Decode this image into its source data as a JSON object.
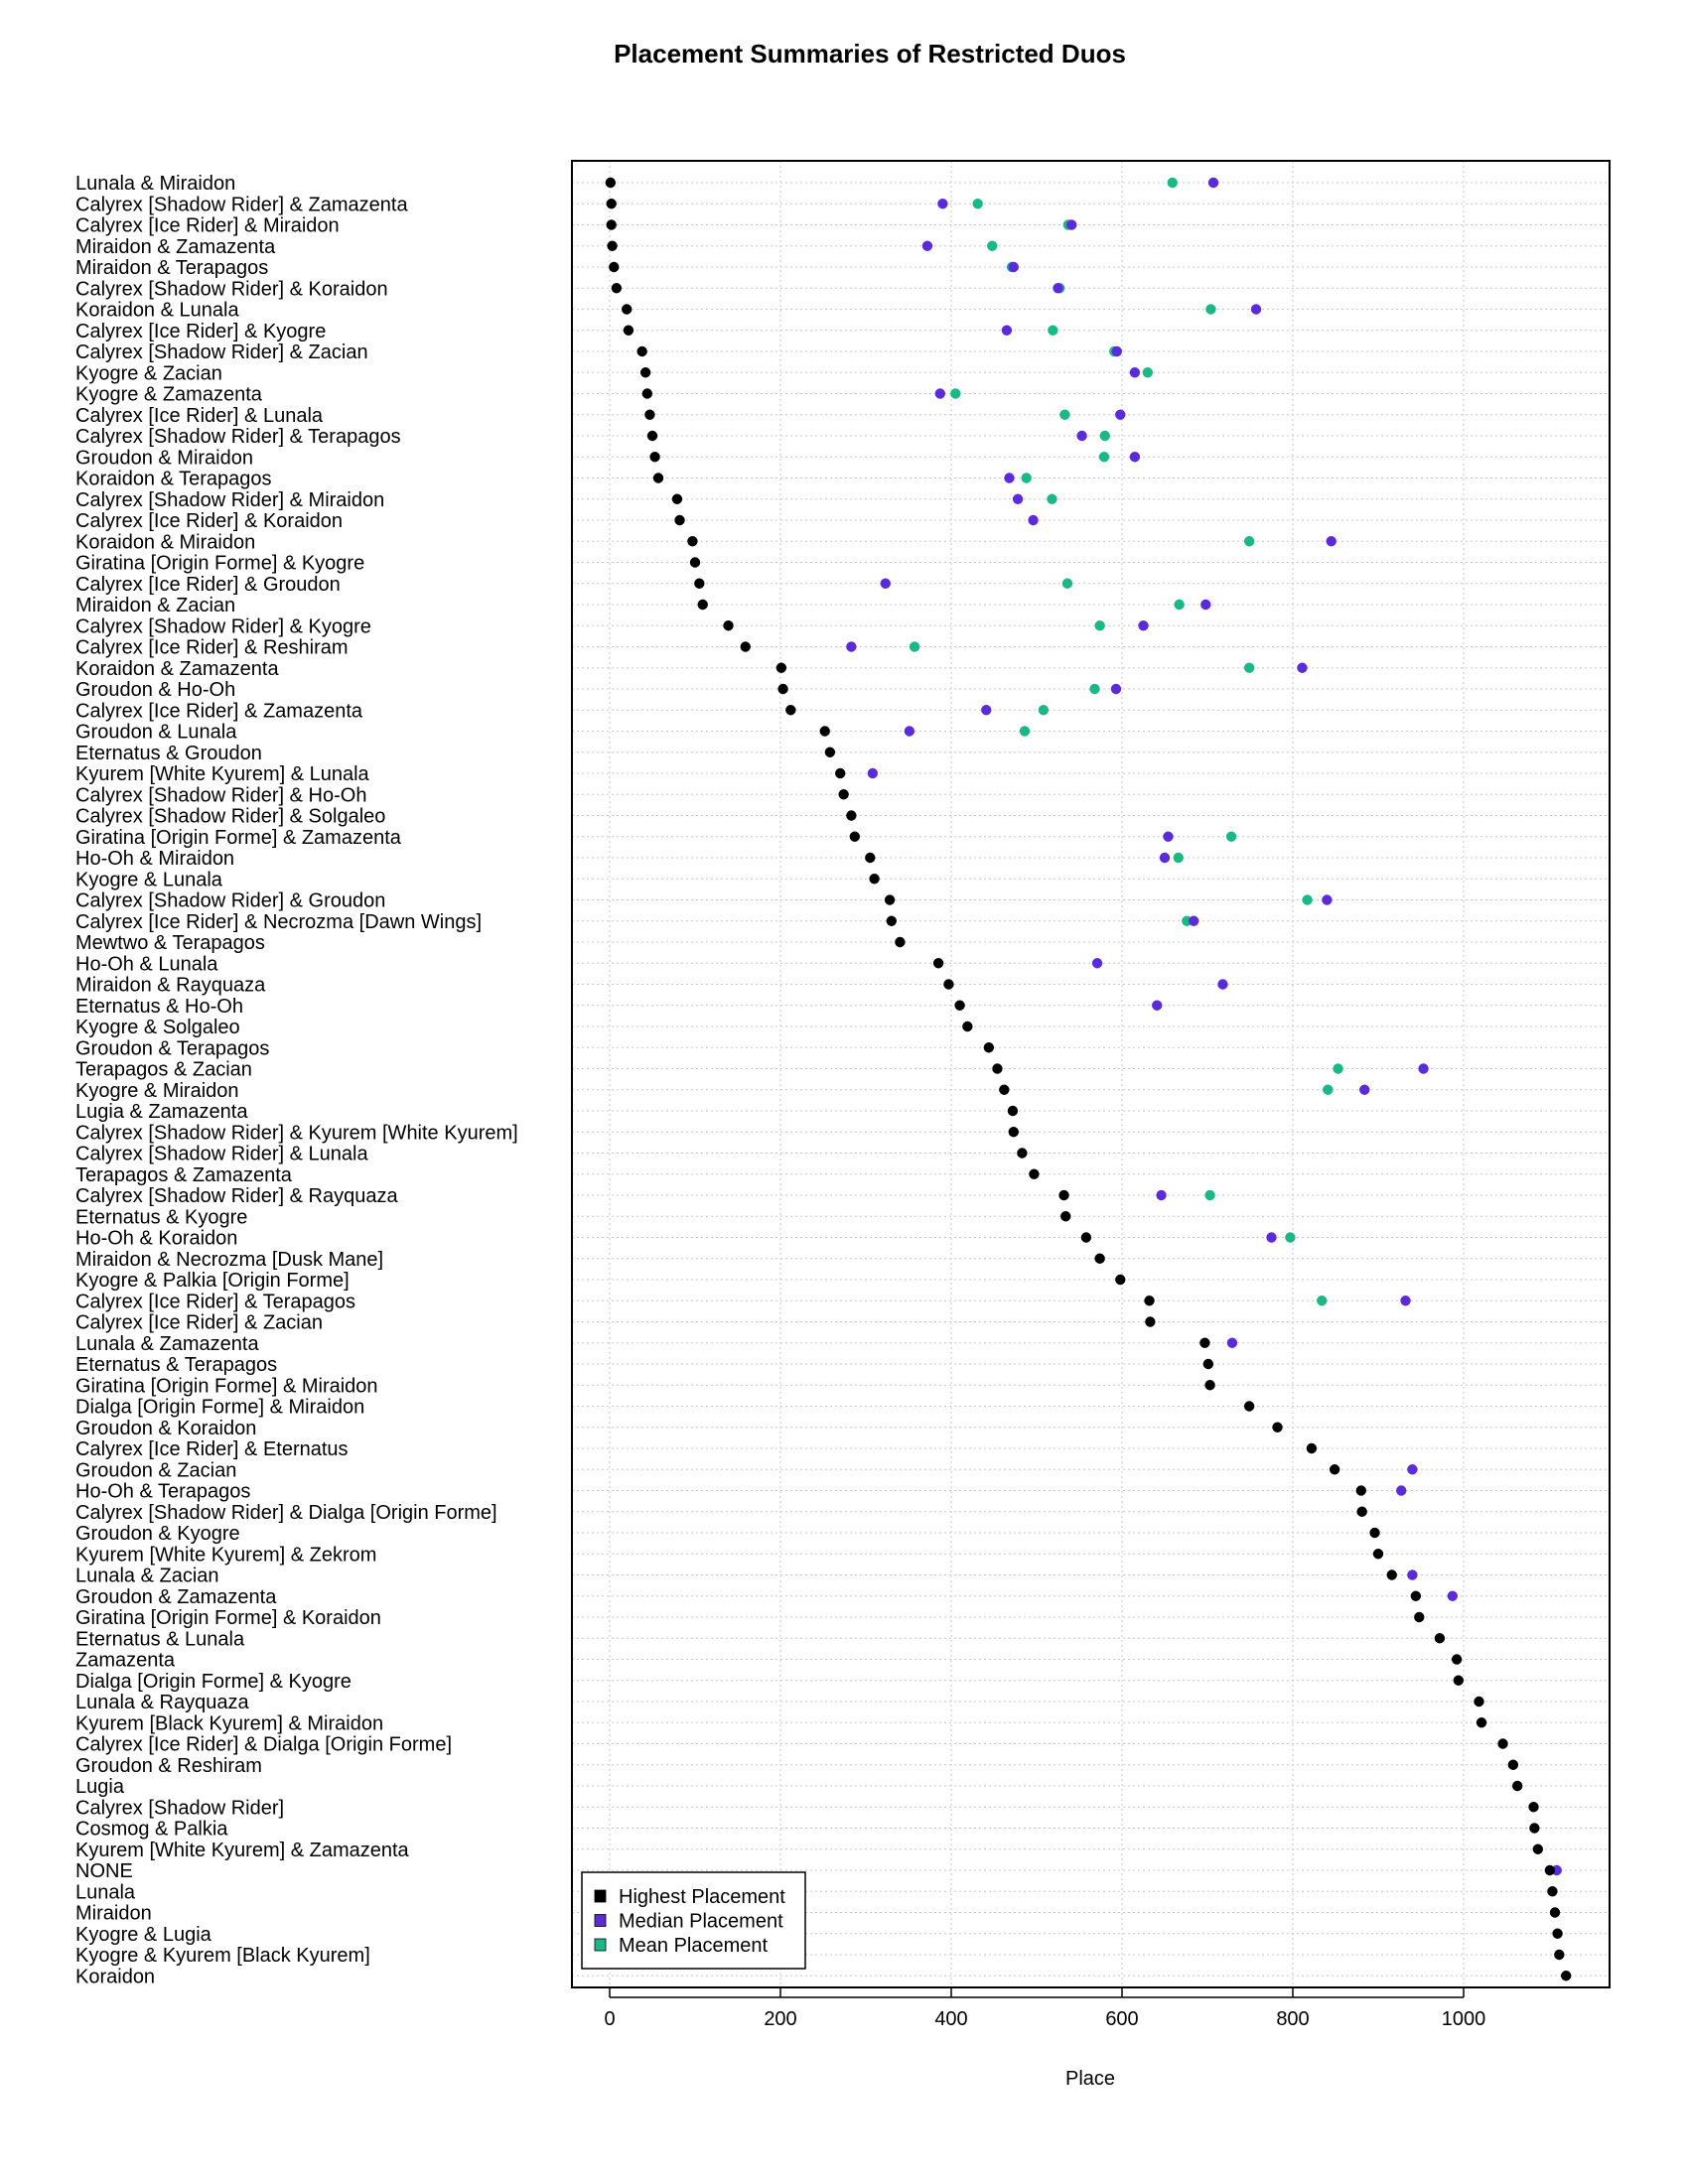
{
  "chart_data": {
    "type": "scatter",
    "title": "Placement Summaries of Restricted Duos",
    "xlabel": "Place",
    "ylabel": "",
    "xlim": [
      -45,
      1170
    ],
    "xticks": [
      0,
      200,
      400,
      600,
      800,
      1000
    ],
    "grid": true,
    "legend_position": "bottom-left",
    "colors": {
      "highest": "#000000",
      "median": "#5b2bd9",
      "mean": "#1ab886"
    },
    "series_names": [
      "Highest Placement",
      "Median Placement",
      "Mean Placement"
    ],
    "categories": [
      "Lunala & Miraidon",
      "Calyrex [Shadow Rider] & Zamazenta",
      "Calyrex [Ice Rider] & Miraidon",
      "Miraidon & Zamazenta",
      "Miraidon & Terapagos",
      "Calyrex [Shadow Rider] & Koraidon",
      "Koraidon & Lunala",
      "Calyrex [Ice Rider] & Kyogre",
      "Calyrex [Shadow Rider] & Zacian",
      "Kyogre & Zacian",
      "Kyogre & Zamazenta",
      "Calyrex [Ice Rider] & Lunala",
      "Calyrex [Shadow Rider] & Terapagos",
      "Groudon & Miraidon",
      "Koraidon & Terapagos",
      "Calyrex [Shadow Rider] & Miraidon",
      "Calyrex [Ice Rider] & Koraidon",
      "Koraidon & Miraidon",
      "Giratina [Origin Forme] & Kyogre",
      "Calyrex [Ice Rider] & Groudon",
      "Miraidon & Zacian",
      "Calyrex [Shadow Rider] & Kyogre",
      "Calyrex [Ice Rider] & Reshiram",
      "Koraidon & Zamazenta",
      "Groudon & Ho-Oh",
      "Calyrex [Ice Rider] & Zamazenta",
      "Groudon & Lunala",
      "Eternatus & Groudon",
      "Kyurem [White Kyurem] & Lunala",
      "Calyrex [Shadow Rider] & Ho-Oh",
      "Calyrex [Shadow Rider] & Solgaleo",
      "Giratina [Origin Forme] & Zamazenta",
      "Ho-Oh & Miraidon",
      "Kyogre & Lunala",
      "Calyrex [Shadow Rider] & Groudon",
      "Calyrex [Ice Rider] & Necrozma [Dawn Wings]",
      "Mewtwo & Terapagos",
      "Ho-Oh & Lunala",
      "Miraidon & Rayquaza",
      "Eternatus & Ho-Oh",
      "Kyogre & Solgaleo",
      "Groudon & Terapagos",
      "Terapagos & Zacian",
      "Kyogre & Miraidon",
      "Lugia & Zamazenta",
      "Calyrex [Shadow Rider] & Kyurem [White Kyurem]",
      "Calyrex [Shadow Rider] & Lunala",
      "Terapagos & Zamazenta",
      "Calyrex [Shadow Rider] & Rayquaza",
      "Eternatus & Kyogre",
      "Ho-Oh & Koraidon",
      "Miraidon & Necrozma [Dusk Mane]",
      "Kyogre & Palkia [Origin Forme]",
      "Calyrex [Ice Rider] & Terapagos",
      "Calyrex [Ice Rider] & Zacian",
      "Lunala & Zamazenta",
      "Eternatus & Terapagos",
      "Giratina [Origin Forme] & Miraidon",
      "Dialga [Origin Forme] & Miraidon",
      "Groudon & Koraidon",
      "Calyrex [Ice Rider] & Eternatus",
      "Groudon & Zacian",
      "Ho-Oh & Terapagos",
      "Calyrex [Shadow Rider] & Dialga [Origin Forme]",
      "Groudon & Kyogre",
      "Kyurem [White Kyurem] & Zekrom",
      "Lunala & Zacian",
      "Groudon & Zamazenta",
      "Giratina [Origin Forme] & Koraidon",
      "Eternatus & Lunala",
      "Zamazenta",
      "Dialga [Origin Forme] & Kyogre",
      "Lunala & Rayquaza",
      "Kyurem [Black Kyurem] & Miraidon",
      "Calyrex [Ice Rider] & Dialga [Origin Forme]",
      "Groudon & Reshiram",
      "Lugia",
      "Calyrex [Shadow Rider]",
      "Cosmog & Palkia",
      "Kyurem [White Kyurem] & Zamazenta",
      "NONE",
      "Lunala",
      "Miraidon",
      "Kyogre & Lugia",
      "Kyogre & Kyurem [Black Kyurem]",
      "Koraidon"
    ],
    "series": [
      {
        "name": "Highest Placement",
        "values": [
          1,
          2,
          2,
          3,
          5,
          8,
          20,
          22,
          38,
          42,
          44,
          47,
          50,
          53,
          57,
          79,
          82,
          97,
          100,
          105,
          109,
          139,
          159,
          201,
          203,
          212,
          252,
          258,
          270,
          274,
          283,
          287,
          305,
          310,
          328,
          330,
          340,
          385,
          397,
          410,
          419,
          444,
          454,
          462,
          472,
          473,
          483,
          497,
          532,
          534,
          558,
          574,
          598,
          632,
          633,
          697,
          701,
          703,
          749,
          782,
          822,
          849,
          880,
          881,
          896,
          900,
          916,
          944,
          948,
          972,
          992,
          994,
          1018,
          1021,
          1046,
          1058,
          1063,
          1082,
          1083,
          1087,
          1101,
          1104,
          1107,
          1110,
          1112,
          1120
        ]
      },
      {
        "name": "Median Placement",
        "values": [
          707,
          390,
          541,
          372,
          473,
          525,
          757,
          465,
          594,
          615,
          387,
          598,
          553,
          615,
          468,
          478,
          496,
          845,
          null,
          323,
          698,
          625,
          283,
          811,
          593,
          441,
          351,
          null,
          308,
          null,
          null,
          654,
          650,
          null,
          840,
          684,
          null,
          571,
          718,
          641,
          null,
          null,
          953,
          884,
          null,
          null,
          null,
          null,
          646,
          null,
          775,
          null,
          null,
          932,
          null,
          729,
          null,
          null,
          null,
          null,
          null,
          940,
          927,
          null,
          null,
          null,
          940,
          987,
          null,
          null,
          null,
          null,
          null,
          null,
          null,
          null,
          null,
          null,
          null,
          null,
          1109,
          null,
          null,
          null,
          null,
          null
        ]
      },
      {
        "name": "Mean Placement",
        "values": [
          659,
          431,
          537,
          448,
          471,
          527,
          704,
          519,
          591,
          630,
          405,
          533,
          580,
          579,
          488,
          518,
          null,
          749,
          null,
          536,
          667,
          574,
          357,
          749,
          568,
          508,
          486,
          null,
          null,
          null,
          null,
          728,
          666,
          null,
          817,
          676,
          null,
          null,
          null,
          null,
          null,
          null,
          853,
          841,
          null,
          null,
          null,
          null,
          703,
          null,
          797,
          null,
          null,
          834,
          null,
          null,
          null,
          null,
          null,
          null,
          null,
          null,
          null,
          null,
          null,
          null,
          null,
          null,
          null,
          null,
          null,
          null,
          null,
          null,
          null,
          null,
          null,
          null,
          null,
          null,
          null,
          null,
          null,
          null,
          null,
          null
        ]
      }
    ]
  }
}
